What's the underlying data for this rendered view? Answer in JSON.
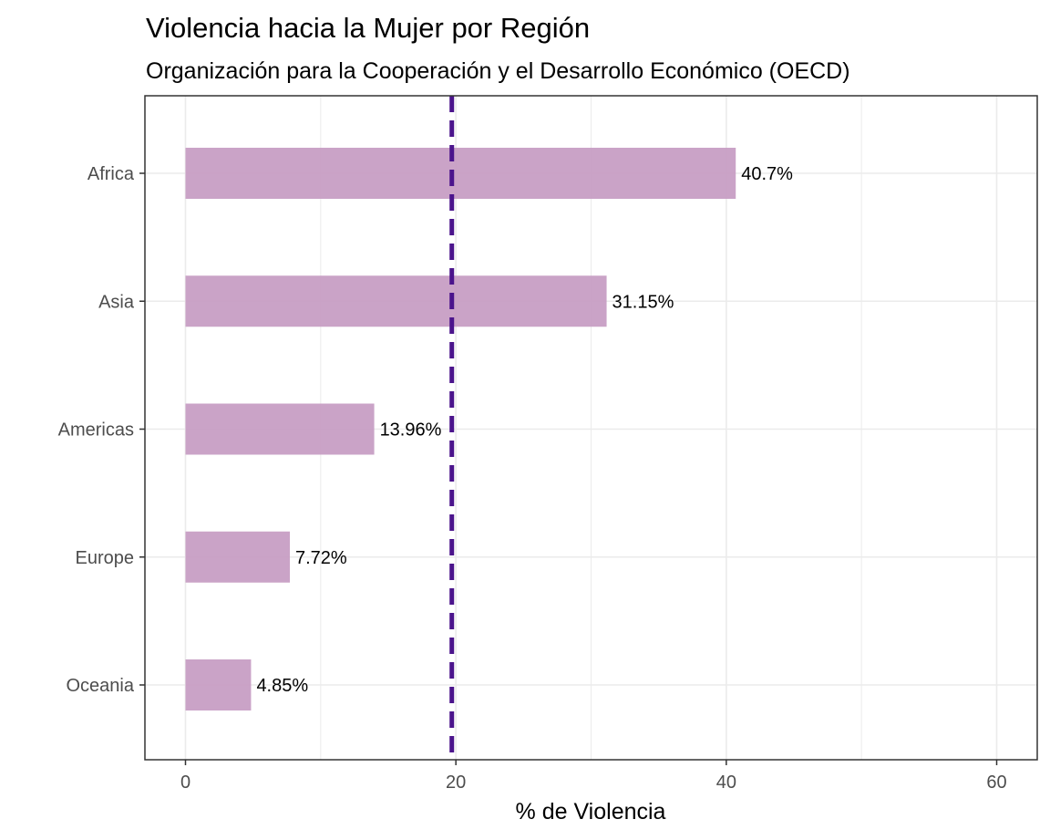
{
  "chart_data": {
    "type": "bar",
    "orientation": "horizontal",
    "title": "Violencia hacia la Mujer por Región",
    "subtitle": "Organización para la Cooperación y el Desarrollo Económico (OECD)",
    "xlabel": "% de Violencia",
    "ylabel": "",
    "categories": [
      "Africa",
      "Asia",
      "Americas",
      "Europe",
      "Oceania"
    ],
    "values": [
      40.7,
      31.15,
      13.96,
      7.72,
      4.85
    ],
    "data_labels": [
      "40.7%",
      "31.15%",
      "13.96%",
      "7.72%",
      "4.85%"
    ],
    "xlim": [
      -3,
      63
    ],
    "xticks": [
      0,
      20,
      40,
      60
    ],
    "xtick_labels": [
      "0",
      "20",
      "40",
      "60"
    ],
    "minor_xticks": [
      10,
      30,
      50
    ],
    "reference_line": {
      "value": 19.7,
      "style": "dashed",
      "color": "#4b148c"
    },
    "bar_color": "#c79ec4",
    "grid": true,
    "legend": "none"
  }
}
